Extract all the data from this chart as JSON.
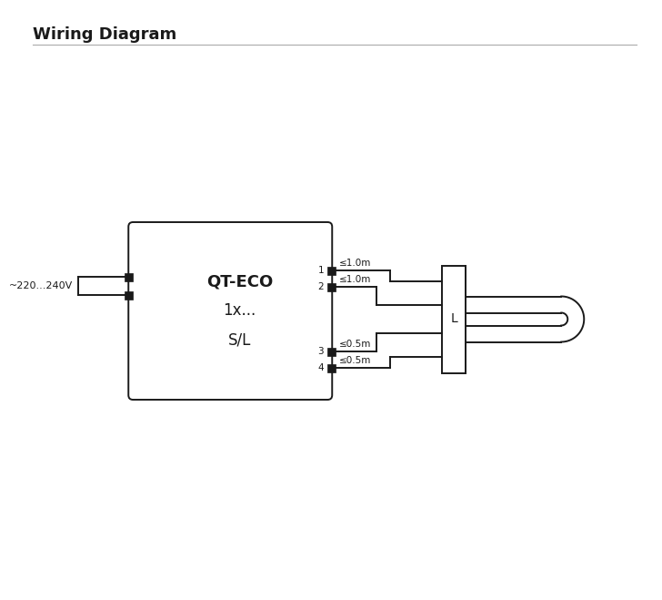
{
  "title": "Wiring Diagram",
  "background_color": "#ffffff",
  "line_color": "#1a1a1a",
  "text_color": "#1a1a1a",
  "voltage_label": "~220...240V",
  "ballast_label_line1": "QT-ECO",
  "ballast_label_line2": "1x...",
  "ballast_label_line3": "S/L",
  "lamp_label": "L",
  "wire_labels": [
    "≤1.0m",
    "≤1.0m",
    "≤0.5m",
    "≤0.5m"
  ],
  "pin_labels": [
    "1",
    "2",
    "3",
    "4"
  ],
  "title_fontsize": 13,
  "label_fontsize": 8,
  "pin_fontsize": 7.5,
  "ballast_fontsize": 13
}
